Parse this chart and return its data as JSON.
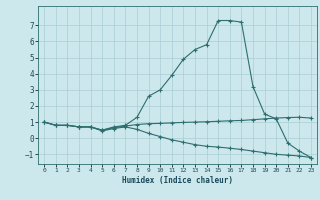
{
  "title": "",
  "xlabel": "Humidex (Indice chaleur)",
  "ylabel": "",
  "background_color": "#cce8ec",
  "grid_color": "#aacdd4",
  "line_color": "#2d6e6e",
  "xlim": [
    -0.5,
    23.5
  ],
  "ylim": [
    -1.6,
    8.2
  ],
  "xticks": [
    0,
    1,
    2,
    3,
    4,
    5,
    6,
    7,
    8,
    9,
    10,
    11,
    12,
    13,
    14,
    15,
    16,
    17,
    18,
    19,
    20,
    21,
    22,
    23
  ],
  "yticks": [
    -1,
    0,
    1,
    2,
    3,
    4,
    5,
    6,
    7
  ],
  "line1_x": [
    0,
    1,
    2,
    3,
    4,
    5,
    6,
    7,
    8,
    9,
    10,
    11,
    12,
    13,
    14,
    15,
    16,
    17,
    18,
    19,
    20,
    21,
    22,
    23
  ],
  "line1_y": [
    1.0,
    0.8,
    0.8,
    0.7,
    0.7,
    0.5,
    0.7,
    0.8,
    1.3,
    2.6,
    3.0,
    3.9,
    4.9,
    5.5,
    5.8,
    7.3,
    7.3,
    7.2,
    3.2,
    1.5,
    1.2,
    -0.3,
    -0.8,
    -1.2
  ],
  "line2_x": [
    0,
    1,
    2,
    3,
    4,
    5,
    6,
    7,
    8,
    9,
    10,
    11,
    12,
    13,
    14,
    15,
    16,
    17,
    18,
    19,
    20,
    21,
    22,
    23
  ],
  "line2_y": [
    1.0,
    0.8,
    0.8,
    0.7,
    0.7,
    0.5,
    0.65,
    0.75,
    0.85,
    0.9,
    0.92,
    0.95,
    0.98,
    1.0,
    1.02,
    1.05,
    1.08,
    1.1,
    1.15,
    1.2,
    1.25,
    1.28,
    1.3,
    1.25
  ],
  "line3_x": [
    0,
    1,
    2,
    3,
    4,
    5,
    6,
    7,
    8,
    9,
    10,
    11,
    12,
    13,
    14,
    15,
    16,
    17,
    18,
    19,
    20,
    21,
    22,
    23
  ],
  "line3_y": [
    1.0,
    0.8,
    0.8,
    0.7,
    0.7,
    0.45,
    0.6,
    0.7,
    0.55,
    0.3,
    0.1,
    -0.1,
    -0.25,
    -0.4,
    -0.5,
    -0.55,
    -0.62,
    -0.7,
    -0.8,
    -0.9,
    -1.0,
    -1.05,
    -1.1,
    -1.2
  ]
}
